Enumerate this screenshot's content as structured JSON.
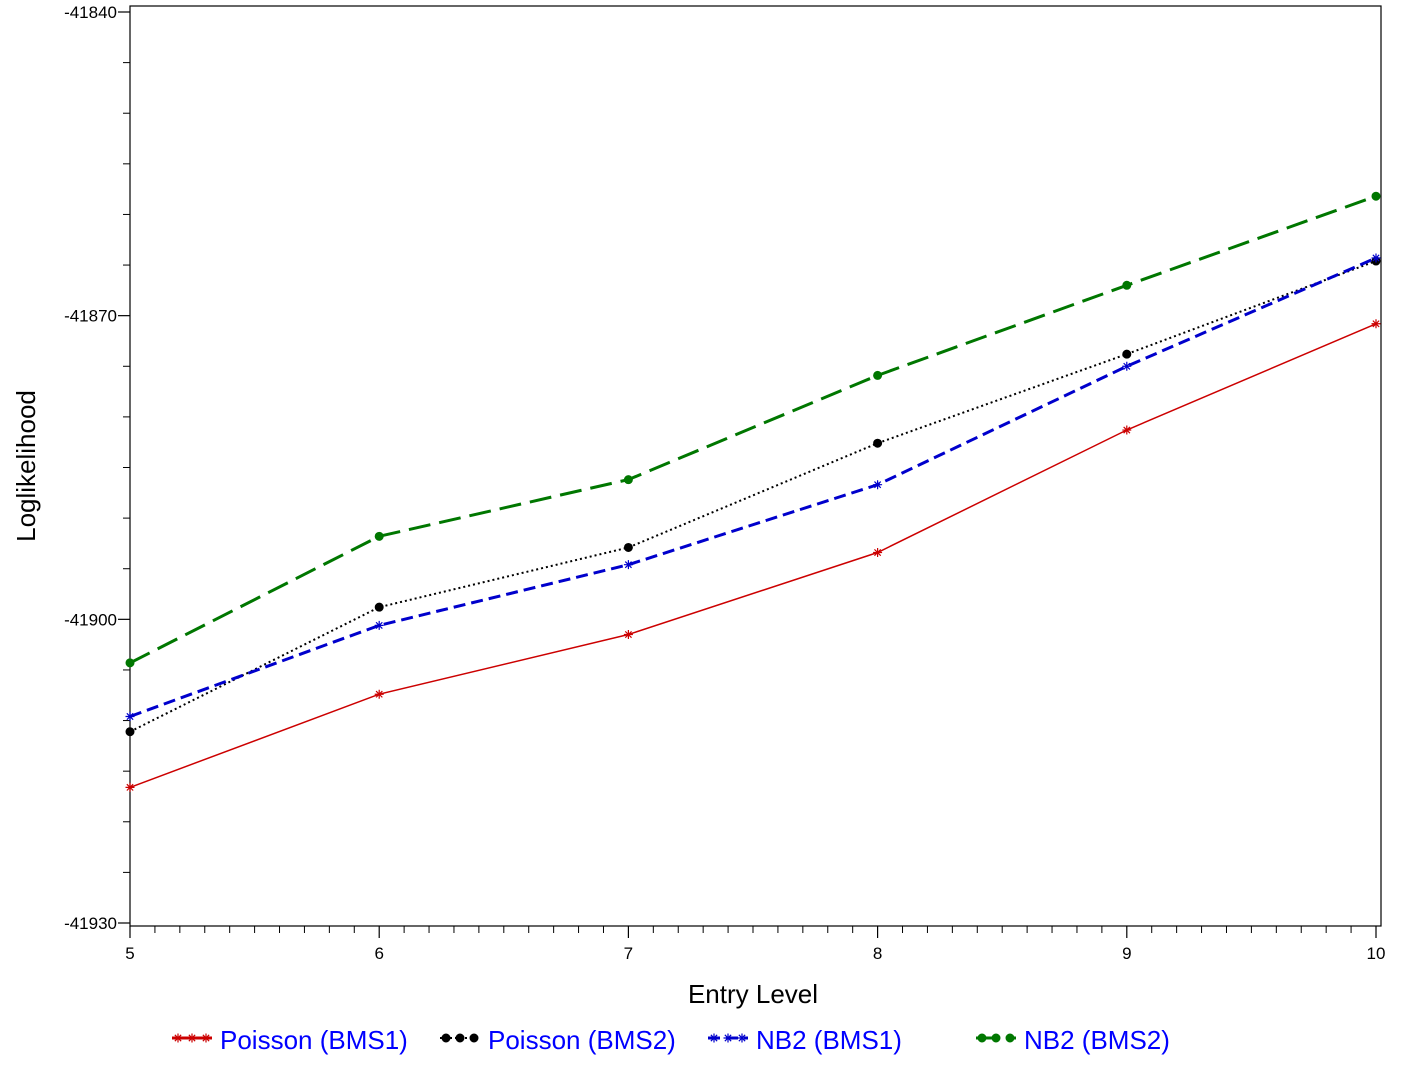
{
  "chart_data": {
    "type": "line",
    "xlabel": "Entry Level",
    "ylabel": "Loglikelihood",
    "xlim": [
      5,
      10
    ],
    "ylim": [
      -41930,
      -41840
    ],
    "x_ticks": [
      5,
      6,
      7,
      8,
      9,
      10
    ],
    "x_tick_labels": [
      "5",
      "6",
      "7",
      "8",
      "9",
      "10"
    ],
    "y_ticks": [
      -41930,
      -41900,
      -41870,
      -41840
    ],
    "y_tick_labels": [
      "-41930",
      "-41900",
      "-41870",
      "-41840"
    ],
    "x_minor_step": 0.1,
    "y_minor_step": 5,
    "grid": false,
    "legend_position": "bottom",
    "legend_text_color": "#0000ff",
    "x": [
      5,
      6,
      7,
      8,
      9,
      10
    ],
    "series": [
      {
        "name": "Poisson (BMS1)",
        "color": "#cc0000",
        "dash": "solid",
        "marker": "star",
        "values": [
          -41916.6,
          -41907.4,
          -41901.5,
          -41893.4,
          -41881.3,
          -41870.8
        ]
      },
      {
        "name": "Poisson (BMS2)",
        "color": "#000000",
        "dash": "dotted",
        "marker": "dot",
        "values": [
          -41911.1,
          -41898.8,
          -41892.9,
          -41882.6,
          -41873.8,
          -41864.6
        ]
      },
      {
        "name": "NB2 (BMS1)",
        "color": "#0000cc",
        "dash": "dashed",
        "marker": "star",
        "values": [
          -41909.6,
          -41900.6,
          -41894.6,
          -41886.7,
          -41875.0,
          -41864.3
        ]
      },
      {
        "name": "NB2 (BMS2)",
        "color": "#007700",
        "dash": "longdash",
        "marker": "dot",
        "values": [
          -41904.3,
          -41891.8,
          -41886.2,
          -41875.9,
          -41867.0,
          -41858.2
        ]
      }
    ]
  }
}
